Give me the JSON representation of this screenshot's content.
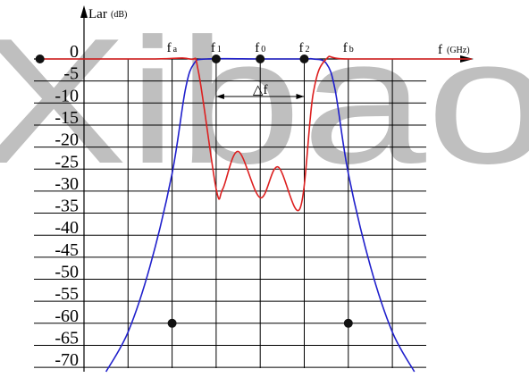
{
  "watermark": "Xibao",
  "chart_data": {
    "type": "line",
    "ylabel": "Lar",
    "ylabel_unit": "(dB)",
    "xlabel": "f",
    "xlabel_unit": "(GHz)",
    "y_ticks": [
      "0",
      "-5",
      "-10",
      "-15",
      "-20",
      "-25",
      "-30",
      "-35",
      "-40",
      "-45",
      "-50",
      "-55",
      "-60",
      "-65",
      "-70"
    ],
    "ylim": [
      -70,
      0
    ],
    "freq_labels": [
      {
        "name": "fa",
        "main": "f",
        "sub": "a"
      },
      {
        "name": "f1",
        "main": "f",
        "sub": "1"
      },
      {
        "name": "f0",
        "main": "f",
        "sub": "0"
      },
      {
        "name": "f2",
        "main": "f",
        "sub": "2"
      },
      {
        "name": "fb",
        "main": "f",
        "sub": "b"
      }
    ],
    "bandwidth_label": "△f",
    "grid": true,
    "series": [
      {
        "color": "#2020cc",
        "points": [
          [
            0.5,
            -71
          ],
          [
            1,
            -62
          ],
          [
            1.5,
            -47
          ],
          [
            2,
            -26
          ],
          [
            2.3,
            -7
          ],
          [
            2.5,
            -1
          ],
          [
            2.8,
            0
          ],
          [
            4,
            0
          ],
          [
            5,
            0
          ],
          [
            5.2,
            0
          ],
          [
            5.5,
            -1
          ],
          [
            5.7,
            -7
          ],
          [
            6,
            -26
          ],
          [
            6.5,
            -47
          ],
          [
            7,
            -62
          ],
          [
            7.5,
            -71
          ]
        ]
      },
      {
        "color": "#dd2020",
        "points": [
          [
            -1,
            0
          ],
          [
            1.5,
            0
          ],
          [
            2.4,
            0
          ],
          [
            2.6,
            -3
          ],
          [
            3,
            -29.5
          ],
          [
            3.15,
            -29.5
          ],
          [
            3.5,
            -21
          ],
          [
            4,
            -31.5
          ],
          [
            4.4,
            -24.5
          ],
          [
            4.9,
            -34
          ],
          [
            5.2,
            -8
          ],
          [
            5.5,
            0
          ],
          [
            6,
            0
          ],
          [
            8.8,
            0
          ]
        ]
      }
    ],
    "markers": [
      [
        -1,
        0
      ],
      [
        3,
        0
      ],
      [
        4,
        0
      ],
      [
        5,
        0
      ],
      [
        2,
        -60
      ],
      [
        6,
        -60
      ]
    ]
  }
}
